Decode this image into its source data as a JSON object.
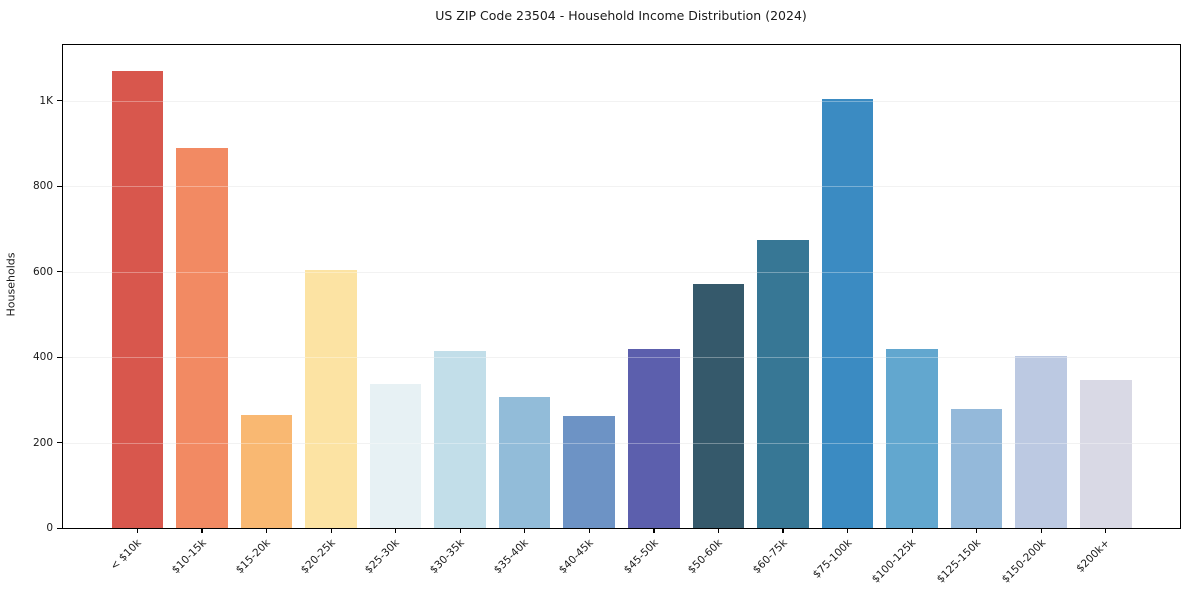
{
  "title": "US ZIP Code 23504 - Household Income Distribution (2024)",
  "chart_data": {
    "type": "bar",
    "title": "US ZIP Code 23504 - Household Income Distribution (2024)",
    "xlabel": "",
    "ylabel": "Households",
    "categories": [
      "< $10k",
      "$10-15k",
      "$15-20k",
      "$20-25k",
      "$25-30k",
      "$30-35k",
      "$35-40k",
      "$40-45k",
      "$45-50k",
      "$50-60k",
      "$60-75k",
      "$75-100k",
      "$100-125k",
      "$125-150k",
      "$150-200k",
      "$200k+"
    ],
    "values": [
      1070,
      890,
      265,
      604,
      337,
      415,
      307,
      262,
      418,
      572,
      675,
      1004,
      420,
      279,
      402,
      346
    ],
    "bar_colors": [
      "#d8574d",
      "#f28a63",
      "#f9b872",
      "#fce3a3",
      "#e7f1f4",
      "#c2dee9",
      "#92bcd9",
      "#6d93c5",
      "#5c5fad",
      "#35596b",
      "#377795",
      "#3b8bc2",
      "#62a7cf",
      "#94b9da",
      "#bcc9e2",
      "#d9d9e5"
    ],
    "ylim": [
      0,
      1130
    ],
    "ytick_values": [
      0,
      200,
      400,
      600,
      800,
      1000
    ],
    "ytick_labels": [
      "0",
      "200",
      "400",
      "600",
      "800",
      "1K"
    ],
    "grid": "horizontal",
    "legend": "none",
    "bar_relative_width": 0.8
  }
}
